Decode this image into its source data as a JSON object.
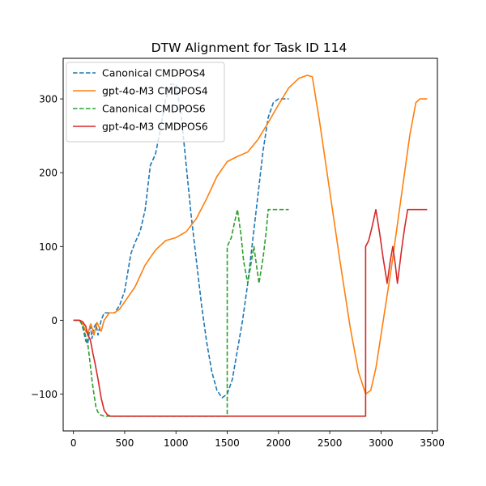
{
  "chart_data": {
    "type": "line",
    "title": "DTW Alignment for Task ID 114",
    "xlabel": "",
    "ylabel": "",
    "xlim": [
      -100,
      3550
    ],
    "ylim": [
      -150,
      355
    ],
    "xticks": [
      0,
      500,
      1000,
      1500,
      2000,
      2500,
      3000,
      3500
    ],
    "yticks": [
      -100,
      0,
      100,
      200,
      300
    ],
    "grid": false,
    "legend_position": "top-left",
    "series": [
      {
        "name": "Canonical CMDPOS4",
        "color": "#1f77b4",
        "dash": "dashed",
        "points": [
          [
            0,
            0
          ],
          [
            60,
            0
          ],
          [
            80,
            -5
          ],
          [
            100,
            -15
          ],
          [
            120,
            -28
          ],
          [
            140,
            -32
          ],
          [
            150,
            -20
          ],
          [
            165,
            -5
          ],
          [
            180,
            -25
          ],
          [
            200,
            -10
          ],
          [
            220,
            -5
          ],
          [
            240,
            -20
          ],
          [
            270,
            0
          ],
          [
            300,
            10
          ],
          [
            350,
            10
          ],
          [
            400,
            10
          ],
          [
            450,
            20
          ],
          [
            500,
            40
          ],
          [
            560,
            90
          ],
          [
            600,
            105
          ],
          [
            650,
            120
          ],
          [
            700,
            150
          ],
          [
            750,
            210
          ],
          [
            800,
            225
          ],
          [
            850,
            260
          ],
          [
            900,
            300
          ],
          [
            950,
            320
          ],
          [
            1000,
            320
          ],
          [
            1050,
            280
          ],
          [
            1100,
            210
          ],
          [
            1150,
            140
          ],
          [
            1200,
            80
          ],
          [
            1250,
            20
          ],
          [
            1300,
            -30
          ],
          [
            1350,
            -70
          ],
          [
            1400,
            -95
          ],
          [
            1450,
            -105
          ],
          [
            1500,
            -100
          ],
          [
            1550,
            -80
          ],
          [
            1600,
            -40
          ],
          [
            1650,
            0
          ],
          [
            1700,
            50
          ],
          [
            1750,
            110
          ],
          [
            1800,
            170
          ],
          [
            1850,
            230
          ],
          [
            1900,
            275
          ],
          [
            1950,
            295
          ],
          [
            2000,
            300
          ],
          [
            2100,
            300
          ]
        ]
      },
      {
        "name": "gpt-4o-M3 CMDPOS4",
        "color": "#ff7f0e",
        "dash": "solid",
        "points": [
          [
            0,
            0
          ],
          [
            60,
            0
          ],
          [
            90,
            -5
          ],
          [
            120,
            -15
          ],
          [
            140,
            -18
          ],
          [
            170,
            -5
          ],
          [
            200,
            -20
          ],
          [
            230,
            -3
          ],
          [
            270,
            -15
          ],
          [
            300,
            0
          ],
          [
            350,
            10
          ],
          [
            400,
            10
          ],
          [
            450,
            15
          ],
          [
            500,
            25
          ],
          [
            600,
            45
          ],
          [
            700,
            75
          ],
          [
            800,
            95
          ],
          [
            900,
            108
          ],
          [
            1000,
            112
          ],
          [
            1100,
            120
          ],
          [
            1200,
            138
          ],
          [
            1300,
            165
          ],
          [
            1400,
            195
          ],
          [
            1500,
            215
          ],
          [
            1600,
            222
          ],
          [
            1700,
            228
          ],
          [
            1800,
            245
          ],
          [
            1900,
            268
          ],
          [
            2000,
            292
          ],
          [
            2100,
            315
          ],
          [
            2200,
            328
          ],
          [
            2280,
            332
          ],
          [
            2330,
            330
          ],
          [
            2400,
            270
          ],
          [
            2500,
            175
          ],
          [
            2600,
            80
          ],
          [
            2700,
            -10
          ],
          [
            2780,
            -70
          ],
          [
            2850,
            -100
          ],
          [
            2900,
            -95
          ],
          [
            2950,
            -65
          ],
          [
            3000,
            -20
          ],
          [
            3100,
            70
          ],
          [
            3200,
            170
          ],
          [
            3280,
            250
          ],
          [
            3340,
            295
          ],
          [
            3380,
            300
          ],
          [
            3450,
            300
          ]
        ]
      },
      {
        "name": "Canonical CMDPOS6",
        "color": "#2ca02c",
        "dash": "dashed",
        "points": [
          [
            0,
            0
          ],
          [
            60,
            0
          ],
          [
            80,
            -5
          ],
          [
            100,
            -12
          ],
          [
            120,
            -22
          ],
          [
            140,
            -32
          ],
          [
            160,
            -55
          ],
          [
            180,
            -80
          ],
          [
            200,
            -100
          ],
          [
            220,
            -118
          ],
          [
            240,
            -125
          ],
          [
            260,
            -128
          ],
          [
            300,
            -130
          ],
          [
            1500,
            -130
          ],
          [
            1500,
            100
          ],
          [
            1540,
            112
          ],
          [
            1575,
            135
          ],
          [
            1600,
            150
          ],
          [
            1635,
            115
          ],
          [
            1660,
            80
          ],
          [
            1700,
            50
          ],
          [
            1730,
            75
          ],
          [
            1760,
            100
          ],
          [
            1790,
            70
          ],
          [
            1810,
            50
          ],
          [
            1850,
            85
          ],
          [
            1880,
            120
          ],
          [
            1900,
            150
          ],
          [
            2100,
            150
          ]
        ]
      },
      {
        "name": "gpt-4o-M3 CMDPOS6",
        "color": "#d62728",
        "dash": "solid",
        "points": [
          [
            0,
            0
          ],
          [
            60,
            0
          ],
          [
            90,
            -2
          ],
          [
            120,
            -8
          ],
          [
            140,
            -20
          ],
          [
            160,
            -25
          ],
          [
            170,
            -30
          ],
          [
            190,
            -45
          ],
          [
            210,
            -58
          ],
          [
            240,
            -80
          ],
          [
            270,
            -105
          ],
          [
            300,
            -122
          ],
          [
            330,
            -128
          ],
          [
            360,
            -130
          ],
          [
            2850,
            -130
          ],
          [
            2850,
            100
          ],
          [
            2880,
            108
          ],
          [
            2910,
            125
          ],
          [
            2950,
            150
          ],
          [
            2990,
            115
          ],
          [
            3020,
            85
          ],
          [
            3060,
            50
          ],
          [
            3090,
            80
          ],
          [
            3115,
            100
          ],
          [
            3140,
            75
          ],
          [
            3160,
            50
          ],
          [
            3200,
            95
          ],
          [
            3230,
            125
          ],
          [
            3260,
            150
          ],
          [
            3450,
            150
          ]
        ]
      }
    ]
  }
}
